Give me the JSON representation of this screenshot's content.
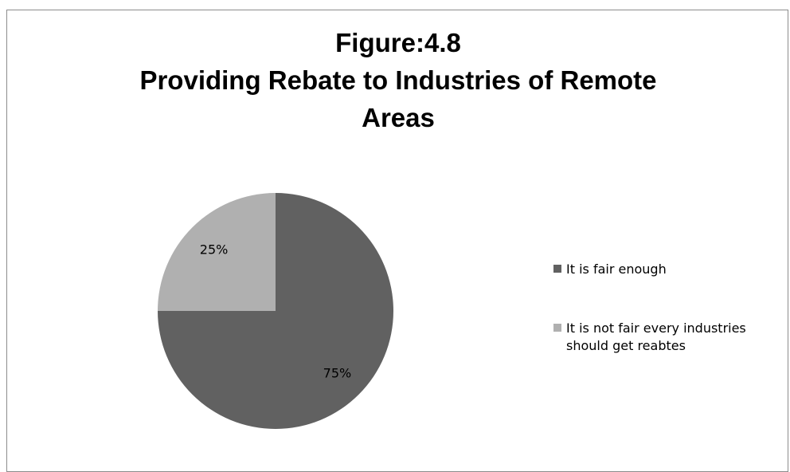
{
  "chart_data": {
    "type": "pie",
    "title_lines": [
      "Figure:4.8",
      "Providing Rebate to Industries of Remote",
      "Areas"
    ],
    "slices": [
      {
        "label": "It  is fair enough",
        "value": 75,
        "data_label": "75%",
        "color": "#616161"
      },
      {
        "label": "It is not fair every industries should get reabtes",
        "value": 25,
        "data_label": "25%",
        "color": "#b0b0b0"
      }
    ],
    "start_angle_deg": 0,
    "direction": "clockwise",
    "legend_position": "right"
  },
  "legend": {
    "items": [
      {
        "lines": [
          "It  is fair enough"
        ],
        "color": "#616161"
      },
      {
        "lines": [
          "It is not fair every industries",
          "should get reabtes"
        ],
        "color": "#b0b0b0"
      }
    ]
  }
}
